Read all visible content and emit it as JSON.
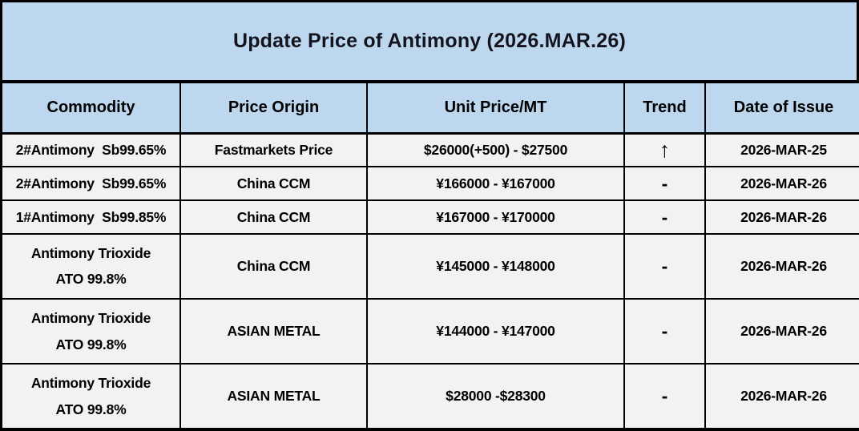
{
  "title": "Update Price of Antimony (2026.MAR.26)",
  "colors": {
    "header_bg": "#bdd7ee",
    "row_bg": "#f2f2f2",
    "border": "#000000",
    "text": "#000000"
  },
  "table": {
    "columns": [
      "Commodity",
      "Price Origin",
      "Unit Price/MT",
      "Trend",
      "Date of Issue"
    ],
    "rows": [
      {
        "commodity": "2#Antimony  Sb99.65%",
        "price_origin": "Fastmarkets Price",
        "unit_price": "$26000(+500) - $27500",
        "trend": "↑",
        "date_of_issue": "2026-MAR-25"
      },
      {
        "commodity": "2#Antimony  Sb99.65%",
        "price_origin": "China CCM",
        "unit_price": "¥166000 - ¥167000",
        "trend": "-",
        "date_of_issue": "2026-MAR-26"
      },
      {
        "commodity": "1#Antimony  Sb99.85%",
        "price_origin": "China CCM",
        "unit_price": "¥167000 - ¥170000",
        "trend": "-",
        "date_of_issue": "2026-MAR-26"
      },
      {
        "commodity": "Antimony Trioxide\nATO 99.8%",
        "price_origin": "China CCM",
        "unit_price": "¥145000 - ¥148000",
        "trend": "-",
        "date_of_issue": "2026-MAR-26"
      },
      {
        "commodity": "Antimony Trioxide\nATO 99.8%",
        "price_origin": "ASIAN METAL",
        "unit_price": "¥144000 - ¥147000",
        "trend": "-",
        "date_of_issue": "2026-MAR-26"
      },
      {
        "commodity": "Antimony Trioxide\nATO 99.8%",
        "price_origin": "ASIAN METAL",
        "unit_price": "$28000 -$28300",
        "trend": "-",
        "date_of_issue": "2026-MAR-26"
      }
    ]
  }
}
